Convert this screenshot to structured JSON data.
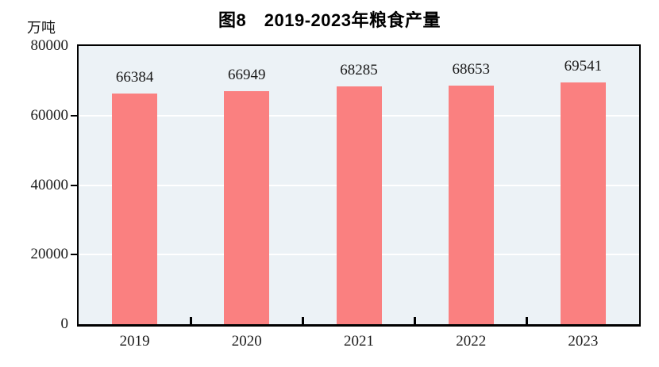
{
  "figure": {
    "title": "图8　2019-2023年粮食产量",
    "unit_label": "万吨"
  },
  "chart_data": {
    "type": "bar",
    "title": "图8　2019-2023年粮食产量",
    "categories": [
      "2019",
      "2020",
      "2021",
      "2022",
      "2023"
    ],
    "values": [
      66384,
      66949,
      68285,
      68653,
      69541
    ],
    "xlabel": "",
    "ylabel": "万吨",
    "ylim": [
      0,
      80000
    ],
    "yticks": [
      0,
      20000,
      40000,
      60000,
      80000
    ],
    "grid": "horizontal",
    "legend_position": "none",
    "colors": {
      "bar_fill": "#FA8080",
      "plot_background": "#ECF2F6",
      "gridline": "#FFFFFF",
      "axis": "#000000",
      "text": "#1A1A1A"
    }
  }
}
